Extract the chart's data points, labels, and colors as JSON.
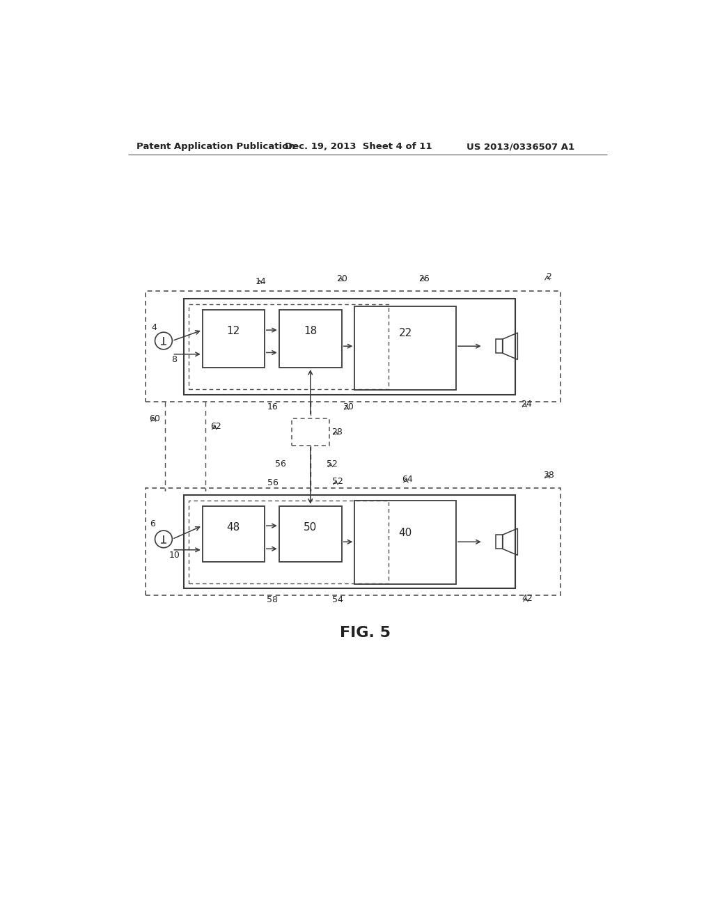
{
  "header_left": "Patent Application Publication",
  "header_mid": "Dec. 19, 2013  Sheet 4 of 11",
  "header_right": "US 2013/0336507 A1",
  "fig_label": "FIG. 5",
  "bg_color": "#ffffff",
  "lc": "#3a3a3a",
  "dc": "#505050"
}
